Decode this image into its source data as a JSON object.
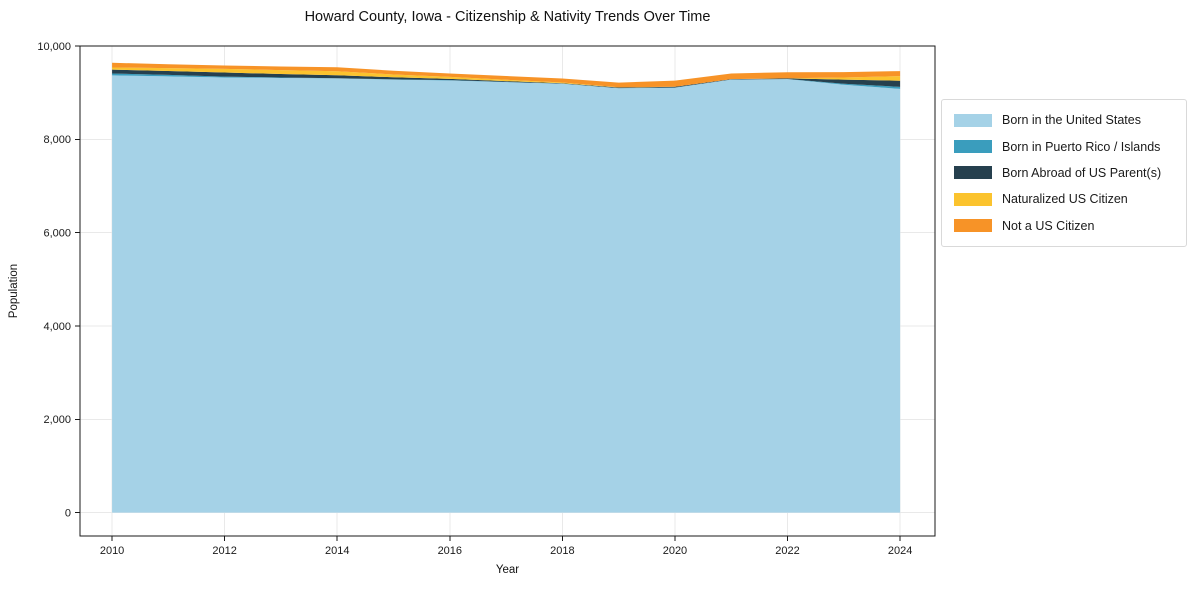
{
  "page": {
    "background": "#ffffff"
  },
  "chart_data": {
    "type": "area",
    "stacked": true,
    "title": "Howard County, Iowa - Citizenship & Nativity Trends Over Time",
    "xlabel": "Year",
    "ylabel": "Population",
    "x": [
      2010,
      2011,
      2012,
      2013,
      2014,
      2015,
      2016,
      2017,
      2018,
      2019,
      2020,
      2021,
      2022,
      2023,
      2024
    ],
    "series": [
      {
        "key": "born-in-us",
        "name": "Born in the United States",
        "color": "#a5d2e7",
        "values": [
          9370,
          9350,
          9325,
          9315,
          9305,
          9280,
          9260,
          9225,
          9190,
          9095,
          9105,
          9280,
          9290,
          9170,
          9080
        ]
      },
      {
        "key": "born-in-pr-islands",
        "name": "Born in Puerto Rico / Islands",
        "color": "#3a9dbd",
        "values": [
          40,
          30,
          20,
          10,
          5,
          5,
          8,
          5,
          3,
          3,
          6,
          3,
          3,
          20,
          45
        ]
      },
      {
        "key": "born-abroad",
        "name": "Born Abroad of US Parent(s)",
        "color": "#26404e",
        "values": [
          85,
          85,
          86,
          75,
          64,
          45,
          28,
          18,
          10,
          12,
          15,
          6,
          12,
          90,
          130
        ]
      },
      {
        "key": "naturalized",
        "name": "Naturalized US Citizen",
        "color": "#fbc32e",
        "values": [
          45,
          60,
          80,
          83,
          86,
          60,
          43,
          28,
          15,
          5,
          2,
          2,
          5,
          45,
          100
        ]
      },
      {
        "key": "not-citizen",
        "name": "Not a US Citizen",
        "color": "#f79327",
        "values": [
          100,
          85,
          70,
          78,
          86,
          80,
          72,
          80,
          86,
          100,
          130,
          120,
          128,
          115,
          107
        ]
      }
    ],
    "xlim": [
      2009.43,
      2024.62
    ],
    "ylim": [
      -500,
      10000
    ],
    "x_ticks": [
      {
        "value": 2010,
        "label": "2010"
      },
      {
        "value": 2012,
        "label": "2012"
      },
      {
        "value": 2014,
        "label": "2014"
      },
      {
        "value": 2016,
        "label": "2016"
      },
      {
        "value": 2018,
        "label": "2018"
      },
      {
        "value": 2020,
        "label": "2020"
      },
      {
        "value": 2022,
        "label": "2022"
      },
      {
        "value": 2024,
        "label": "2024"
      }
    ],
    "y_ticks": [
      {
        "value": 0,
        "label": "0"
      },
      {
        "value": 2000,
        "label": "2,000"
      },
      {
        "value": 4000,
        "label": "4,000"
      },
      {
        "value": 6000,
        "label": "6,000"
      },
      {
        "value": 8000,
        "label": "8,000"
      },
      {
        "value": 10000,
        "label": "10,000"
      }
    ],
    "grid": true,
    "grid_color": "#e9e9e9",
    "axis_color": "#1a1a1a",
    "legend_position": "right"
  }
}
